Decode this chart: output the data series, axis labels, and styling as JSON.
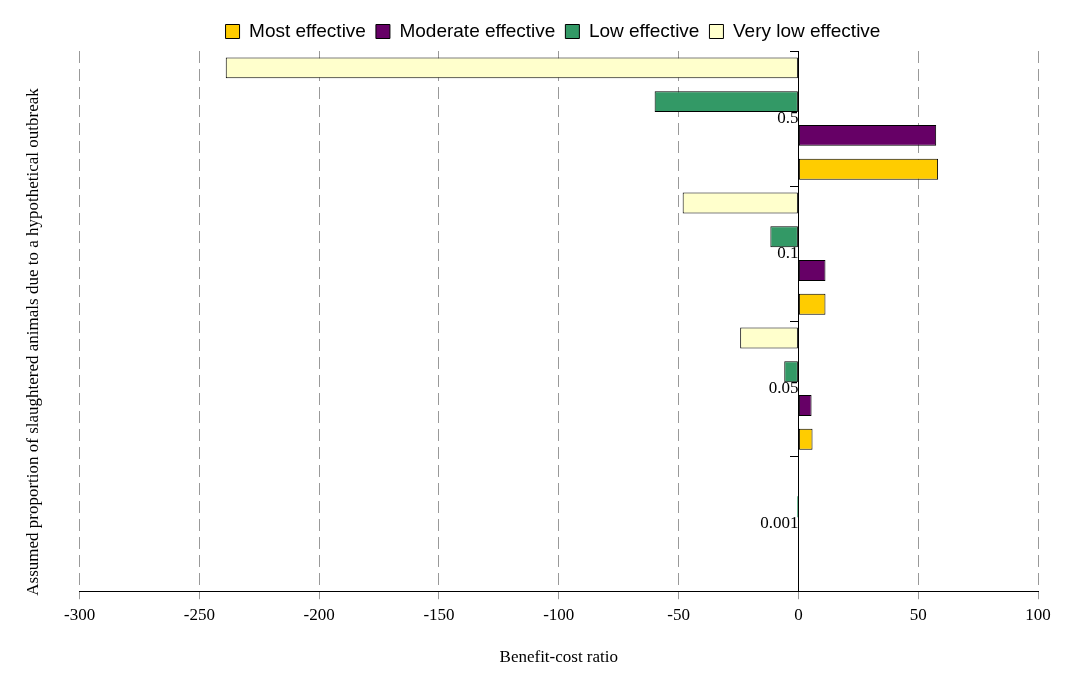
{
  "chart_data": {
    "type": "bar",
    "orientation": "horizontal",
    "xlabel": "Benefit-cost ratio",
    "ylabel": "Assumed proportion of slaughtered animals due to a hypothetical outbreak",
    "categories": [
      "0.5",
      "0.1",
      "0.05",
      "0.001"
    ],
    "series": [
      {
        "name": "Most effective",
        "color": "#ffcc00",
        "values": [
          58.3,
          11.3,
          5.9,
          null
        ]
      },
      {
        "name": "Moderate effective",
        "color": "#660066",
        "values": [
          57.5,
          11.3,
          5.5,
          null
        ]
      },
      {
        "name": "Low effective",
        "color": "#339966",
        "values": [
          -60,
          -11.7,
          -5.9,
          -0.5
        ]
      },
      {
        "name": "Very low effective",
        "color": "#ffffcc",
        "values": [
          -239,
          -48.3,
          -24.3,
          null
        ]
      }
    ],
    "xlim": [
      -300,
      100
    ],
    "xticks": [
      -300,
      -250,
      -200,
      -150,
      -100,
      -50,
      0,
      50,
      100
    ],
    "grid": "x",
    "legend": "top"
  }
}
